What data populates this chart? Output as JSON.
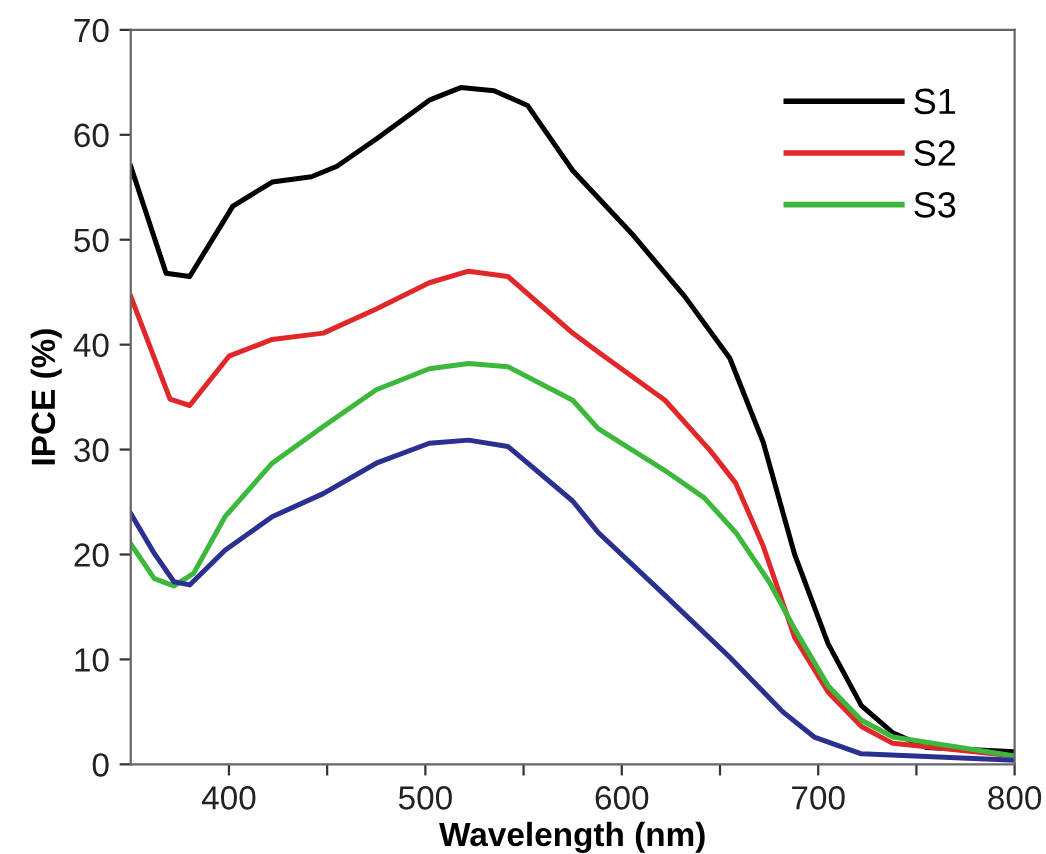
{
  "chart_data": {
    "type": "line",
    "xlabel": "Wavelength (nm)",
    "ylabel": "IPCE (%)",
    "xlim": [
      350,
      800
    ],
    "ylim": [
      0,
      70
    ],
    "xticks": [
      400,
      {
        "value": 450,
        "label": null
      },
      500,
      {
        "value": 550,
        "label": null
      },
      600,
      {
        "value": 650,
        "label": null
      },
      700,
      {
        "value": 750,
        "label": null
      },
      800
    ],
    "yticks": [
      0,
      10,
      20,
      30,
      40,
      50,
      60,
      70
    ],
    "grid": false,
    "legend": "top right",
    "marker": "none",
    "line_style": "solid",
    "series": [
      {
        "name": "S1",
        "color": "#000000",
        "x": [
          350,
          368,
          380,
          402,
          422,
          442,
          455,
          475,
          502,
          518,
          535,
          552,
          575,
          605,
          632,
          655,
          672,
          688,
          705,
          722,
          738,
          755,
          800
        ],
        "values": [
          57.0,
          46.8,
          46.5,
          53.2,
          55.5,
          56.0,
          57.0,
          59.6,
          63.3,
          64.5,
          64.2,
          62.8,
          56.6,
          50.6,
          44.6,
          38.7,
          30.7,
          20.0,
          11.5,
          5.6,
          3.0,
          1.6,
          1.2
        ]
      },
      {
        "name": "S2",
        "color": "#e0282a",
        "x": [
          350,
          370,
          380,
          400,
          422,
          448,
          475,
          502,
          522,
          542,
          575,
          588,
          622,
          645,
          658,
          672,
          688,
          705,
          722,
          738,
          800
        ],
        "values": [
          44.6,
          34.8,
          34.2,
          38.9,
          40.5,
          41.1,
          43.4,
          45.9,
          47.0,
          46.5,
          41.1,
          39.3,
          34.7,
          29.9,
          26.8,
          20.8,
          12.1,
          6.9,
          3.6,
          2.0,
          0.8
        ]
      },
      {
        "name": "S3",
        "color": "#3cb83c",
        "x": [
          350,
          362,
          372,
          382,
          398,
          422,
          448,
          475,
          502,
          522,
          542,
          575,
          588,
          622,
          642,
          658,
          675,
          688,
          705,
          722,
          738,
          800
        ],
        "values": [
          21.0,
          17.7,
          17.0,
          18.2,
          23.6,
          28.7,
          32.2,
          35.7,
          37.7,
          38.2,
          37.9,
          34.7,
          32.0,
          28.0,
          25.4,
          22.1,
          17.4,
          12.9,
          7.5,
          4.2,
          2.6,
          0.8
        ]
      },
      {
        "color": "#2b2f8f",
        "x": [
          350,
          362,
          372,
          380,
          398,
          422,
          448,
          475,
          502,
          522,
          542,
          575,
          588,
          622,
          655,
          682,
          698,
          722,
          800
        ],
        "values": [
          23.9,
          20.1,
          17.4,
          17.1,
          20.4,
          23.6,
          25.8,
          28.7,
          30.6,
          30.9,
          30.3,
          25.1,
          22.1,
          16.1,
          10.2,
          5.0,
          2.6,
          1.0,
          0.4
        ]
      }
    ]
  }
}
